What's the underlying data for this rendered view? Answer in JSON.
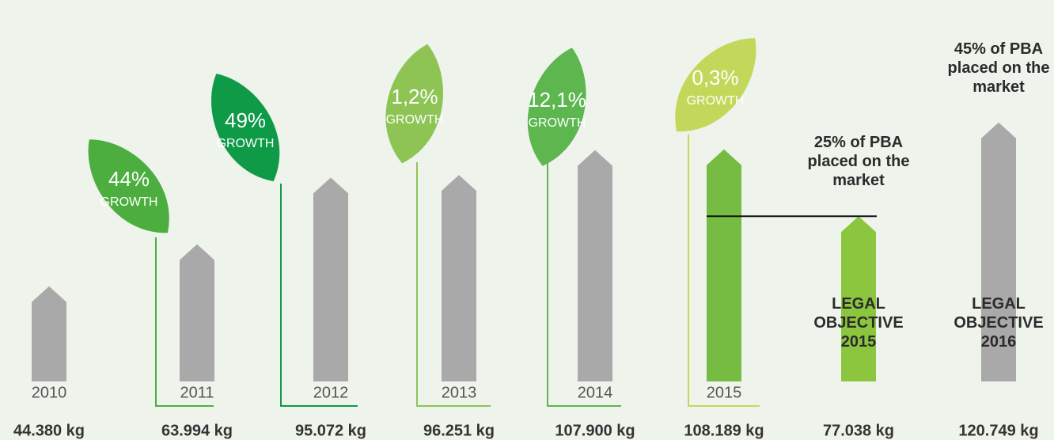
{
  "chart_data": {
    "type": "bar",
    "categories": [
      "2010",
      "2011",
      "2012",
      "2013",
      "2014",
      "2015",
      "LEGAL OBJECTIVE 2015",
      "LEGAL OBJECTIVE 2016"
    ],
    "values": [
      44380,
      63994,
      95072,
      96251,
      107900,
      108189,
      77038,
      120749
    ],
    "value_labels": [
      "44.380 kg",
      "63.994 kg",
      "95.072 kg",
      "96.251 kg",
      "107.900 kg",
      "108.189 kg",
      "77.038 kg",
      "120.749 kg"
    ],
    "colors": [
      "#a9a9a9",
      "#a9a9a9",
      "#a9a9a9",
      "#a9a9a9",
      "#a9a9a9",
      "#76bc43",
      "#8cc63f",
      "#a9a9a9"
    ],
    "notes": [
      null,
      null,
      null,
      null,
      null,
      null,
      "25% of PBA placed on the market",
      "45% of PBA placed on the market"
    ],
    "growth": [
      "44%",
      "49%",
      "1,2%",
      "12,1%",
      "0,3%"
    ],
    "growth_caption": "GROWTH",
    "growth_colors": [
      "#4cae3f",
      "#0e9a47",
      "#8dc454",
      "#5db64e",
      "#c3d85a"
    ]
  }
}
